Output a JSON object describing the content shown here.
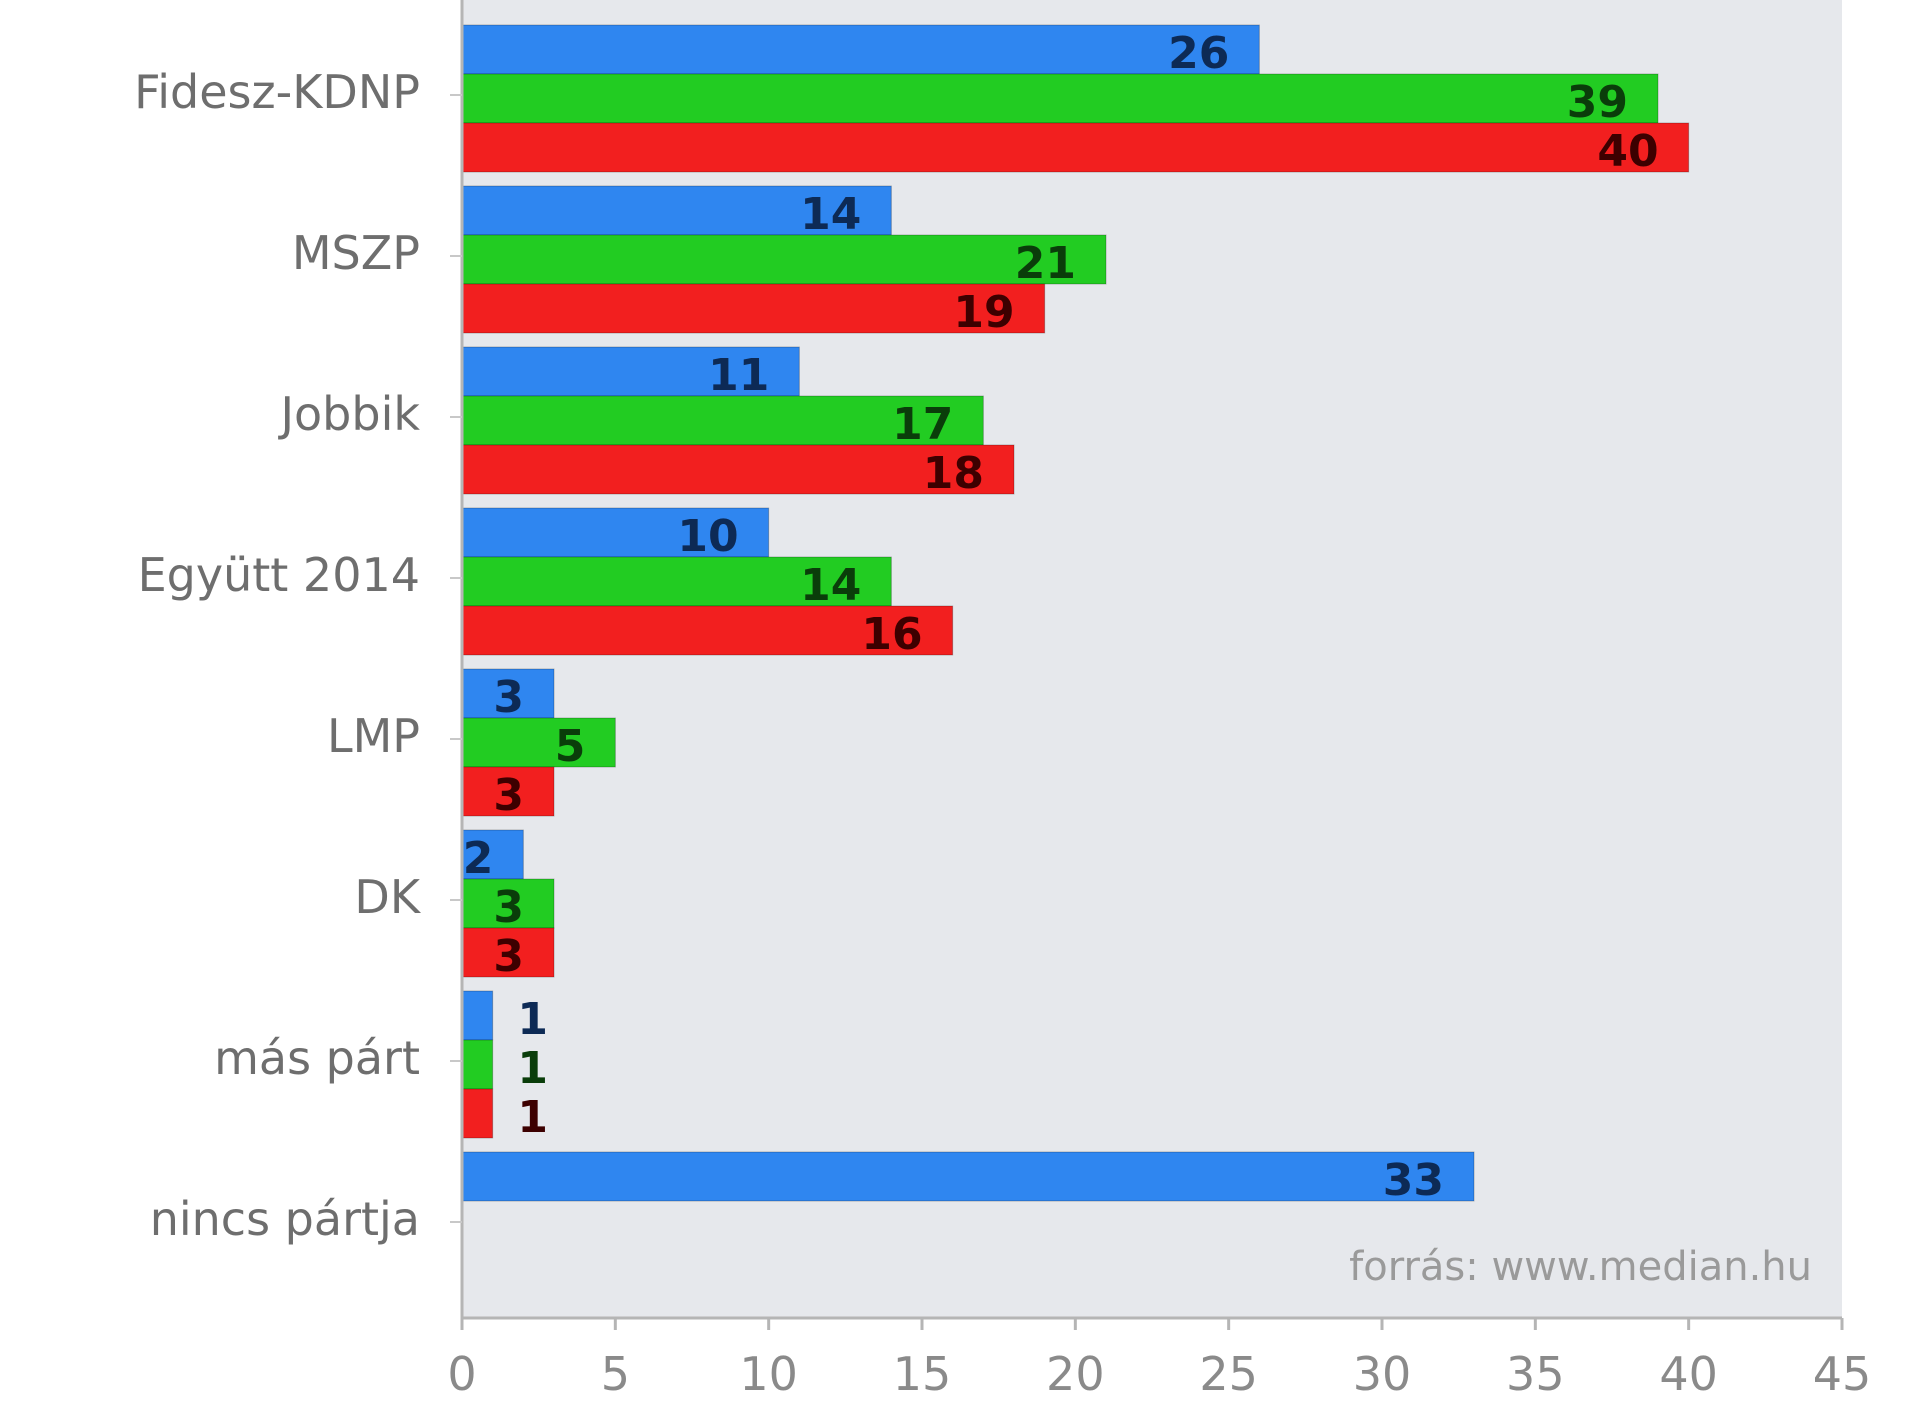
{
  "chart_data": {
    "type": "bar",
    "orientation": "horizontal",
    "categories": [
      "Fidesz-KDNP",
      "MSZP",
      "Jobbik",
      "Együtt 2014",
      "LMP",
      "DK",
      "más párt",
      "nincs pártja"
    ],
    "series": [
      {
        "color": "#2f86f0",
        "label_color": "#0d2a55",
        "values": [
          26,
          14,
          11,
          10,
          3,
          2,
          1,
          33
        ]
      },
      {
        "color": "#22cc22",
        "label_color": "#0a3d0a",
        "values": [
          39,
          21,
          17,
          14,
          5,
          3,
          1,
          null
        ]
      },
      {
        "color": "#f21f1f",
        "label_color": "#3d0000",
        "values": [
          40,
          19,
          18,
          16,
          3,
          3,
          1,
          null
        ]
      }
    ],
    "xlim": [
      0,
      45
    ],
    "xticks": [
      "0",
      "5",
      "10",
      "15",
      "20",
      "25",
      "30",
      "35",
      "40",
      "45"
    ],
    "grid": false,
    "plot_background": "#e6e8ec",
    "annotation": "forrás: www.median.hu"
  }
}
